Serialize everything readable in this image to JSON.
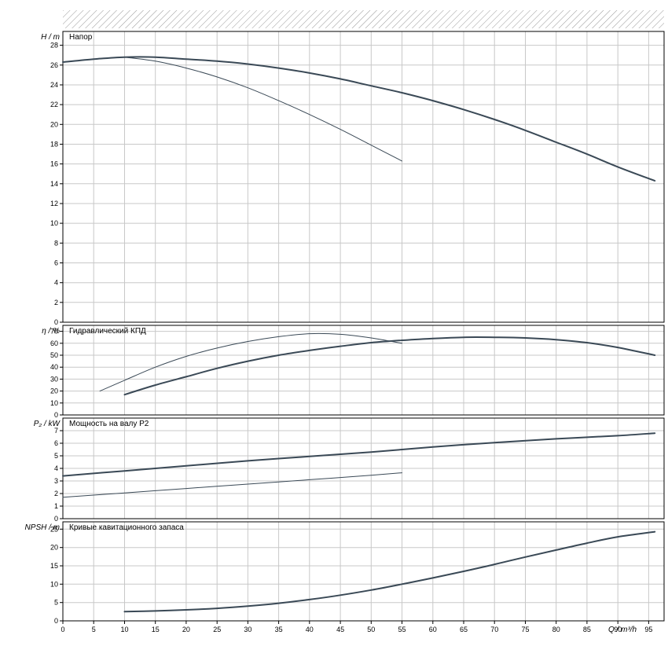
{
  "colors": {
    "curve": "#3a4956",
    "grid": "#c8c8c8",
    "axis": "#000000",
    "hatch": "#999999",
    "background": "#ffffff"
  },
  "xaxis": {
    "label": "Q / m³/h",
    "min": 0,
    "max": 97.5,
    "tick_step": 5
  },
  "chart_data": [
    {
      "type": "line",
      "title": "Напор",
      "ylabel": "H / m",
      "ylim": [
        0,
        29.4
      ],
      "ytick_step": 2,
      "series": [
        {
          "name": "curve-main",
          "style": "thick",
          "points": [
            [
              0,
              26.3
            ],
            [
              5,
              26.6
            ],
            [
              10,
              26.8
            ],
            [
              15,
              26.8
            ],
            [
              20,
              26.6
            ],
            [
              25,
              26.4
            ],
            [
              30,
              26.1
            ],
            [
              35,
              25.7
            ],
            [
              40,
              25.2
            ],
            [
              45,
              24.6
            ],
            [
              50,
              23.9
            ],
            [
              55,
              23.2
            ],
            [
              60,
              22.4
            ],
            [
              65,
              21.5
            ],
            [
              70,
              20.5
            ],
            [
              75,
              19.4
            ],
            [
              80,
              18.2
            ],
            [
              85,
              17.0
            ],
            [
              90,
              15.7
            ],
            [
              96,
              14.3
            ]
          ]
        },
        {
          "name": "curve-secondary",
          "style": "thin",
          "points": [
            [
              10,
              26.8
            ],
            [
              15,
              26.4
            ],
            [
              20,
              25.7
            ],
            [
              25,
              24.8
            ],
            [
              30,
              23.7
            ],
            [
              35,
              22.4
            ],
            [
              40,
              21.0
            ],
            [
              45,
              19.5
            ],
            [
              50,
              17.9
            ],
            [
              55,
              16.3
            ]
          ]
        }
      ]
    },
    {
      "type": "line",
      "title": "Гидравлический КПД",
      "ylabel": "η / %",
      "ylim": [
        0,
        75
      ],
      "ytick_step": 10,
      "series": [
        {
          "name": "curve-main",
          "style": "thick",
          "points": [
            [
              10,
              17
            ],
            [
              15,
              25
            ],
            [
              20,
              32
            ],
            [
              25,
              39
            ],
            [
              30,
              45
            ],
            [
              35,
              50
            ],
            [
              40,
              54
            ],
            [
              45,
              57.5
            ],
            [
              50,
              60.5
            ],
            [
              55,
              62.5
            ],
            [
              60,
              64
            ],
            [
              65,
              65
            ],
            [
              70,
              65
            ],
            [
              75,
              64.5
            ],
            [
              80,
              63
            ],
            [
              85,
              60.5
            ],
            [
              90,
              56.5
            ],
            [
              96,
              50
            ]
          ]
        },
        {
          "name": "curve-secondary",
          "style": "thin",
          "points": [
            [
              6,
              20
            ],
            [
              10,
              29
            ],
            [
              15,
              40
            ],
            [
              20,
              49
            ],
            [
              25,
              56
            ],
            [
              30,
              61.5
            ],
            [
              35,
              65.5
            ],
            [
              40,
              68
            ],
            [
              45,
              67.5
            ],
            [
              50,
              64.5
            ],
            [
              55,
              60
            ]
          ]
        }
      ]
    },
    {
      "type": "line",
      "title": "Мощность на валу P2",
      "ylabel": "P₂ / kW",
      "ylim": [
        0,
        8
      ],
      "ytick_step": 1,
      "series": [
        {
          "name": "curve-main",
          "style": "thick",
          "points": [
            [
              0,
              3.4
            ],
            [
              10,
              3.8
            ],
            [
              20,
              4.2
            ],
            [
              30,
              4.6
            ],
            [
              40,
              4.95
            ],
            [
              50,
              5.3
            ],
            [
              60,
              5.7
            ],
            [
              70,
              6.05
            ],
            [
              80,
              6.35
            ],
            [
              90,
              6.6
            ],
            [
              96,
              6.8
            ]
          ]
        },
        {
          "name": "curve-secondary",
          "style": "thin",
          "points": [
            [
              0,
              1.7
            ],
            [
              10,
              2.05
            ],
            [
              20,
              2.4
            ],
            [
              30,
              2.75
            ],
            [
              40,
              3.1
            ],
            [
              50,
              3.45
            ],
            [
              55,
              3.65
            ]
          ]
        }
      ]
    },
    {
      "type": "line",
      "title": "Кривые кавитационного запаса",
      "ylabel": "NPSH / m",
      "ylim": [
        0,
        27
      ],
      "ytick_step": 5,
      "series": [
        {
          "name": "curve-main",
          "style": "thick",
          "points": [
            [
              10,
              2.5
            ],
            [
              15,
              2.7
            ],
            [
              20,
              3.0
            ],
            [
              25,
              3.4
            ],
            [
              30,
              4.0
            ],
            [
              35,
              4.8
            ],
            [
              40,
              5.8
            ],
            [
              45,
              7.0
            ],
            [
              50,
              8.4
            ],
            [
              55,
              10.0
            ],
            [
              60,
              11.7
            ],
            [
              65,
              13.5
            ],
            [
              70,
              15.4
            ],
            [
              75,
              17.4
            ],
            [
              80,
              19.3
            ],
            [
              85,
              21.2
            ],
            [
              90,
              22.9
            ],
            [
              96,
              24.3
            ]
          ]
        }
      ]
    }
  ]
}
